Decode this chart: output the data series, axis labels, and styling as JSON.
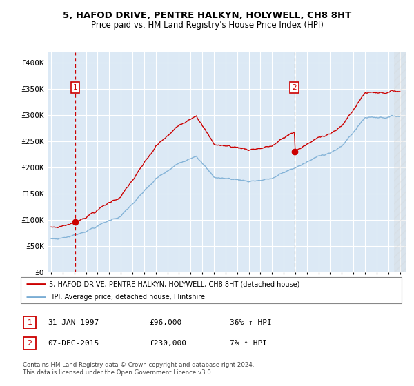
{
  "title": "5, HAFOD DRIVE, PENTRE HALKYN, HOLYWELL, CH8 8HT",
  "subtitle": "Price paid vs. HM Land Registry's House Price Index (HPI)",
  "legend_line1": "5, HAFOD DRIVE, PENTRE HALKYN, HOLYWELL, CH8 8HT (detached house)",
  "legend_line2": "HPI: Average price, detached house, Flintshire",
  "table_row1": [
    "1",
    "31-JAN-1997",
    "£96,000",
    "36% ↑ HPI"
  ],
  "table_row2": [
    "2",
    "07-DEC-2015",
    "£230,000",
    "7% ↑ HPI"
  ],
  "footnote": "Contains HM Land Registry data © Crown copyright and database right 2024.\nThis data is licensed under the Open Government Licence v3.0.",
  "sale1_date": 1997.08,
  "sale1_price": 96000,
  "sale2_date": 2015.92,
  "sale2_price": 230000,
  "red_line_color": "#cc0000",
  "blue_line_color": "#7aadd4",
  "plot_bg": "#dce9f5",
  "grid_color": "#ffffff",
  "sale_dot_color": "#cc0000",
  "vline_color_1": "#cc0000",
  "vline_color_2": "#aaaaaa",
  "ylim": [
    0,
    420000
  ],
  "yticks": [
    0,
    50000,
    100000,
    150000,
    200000,
    250000,
    300000,
    350000,
    400000
  ],
  "ytick_labels": [
    "£0",
    "£50K",
    "£100K",
    "£150K",
    "£200K",
    "£250K",
    "£300K",
    "£350K",
    "£400K"
  ],
  "xlim_start": 1994.7,
  "xlim_end": 2025.5
}
